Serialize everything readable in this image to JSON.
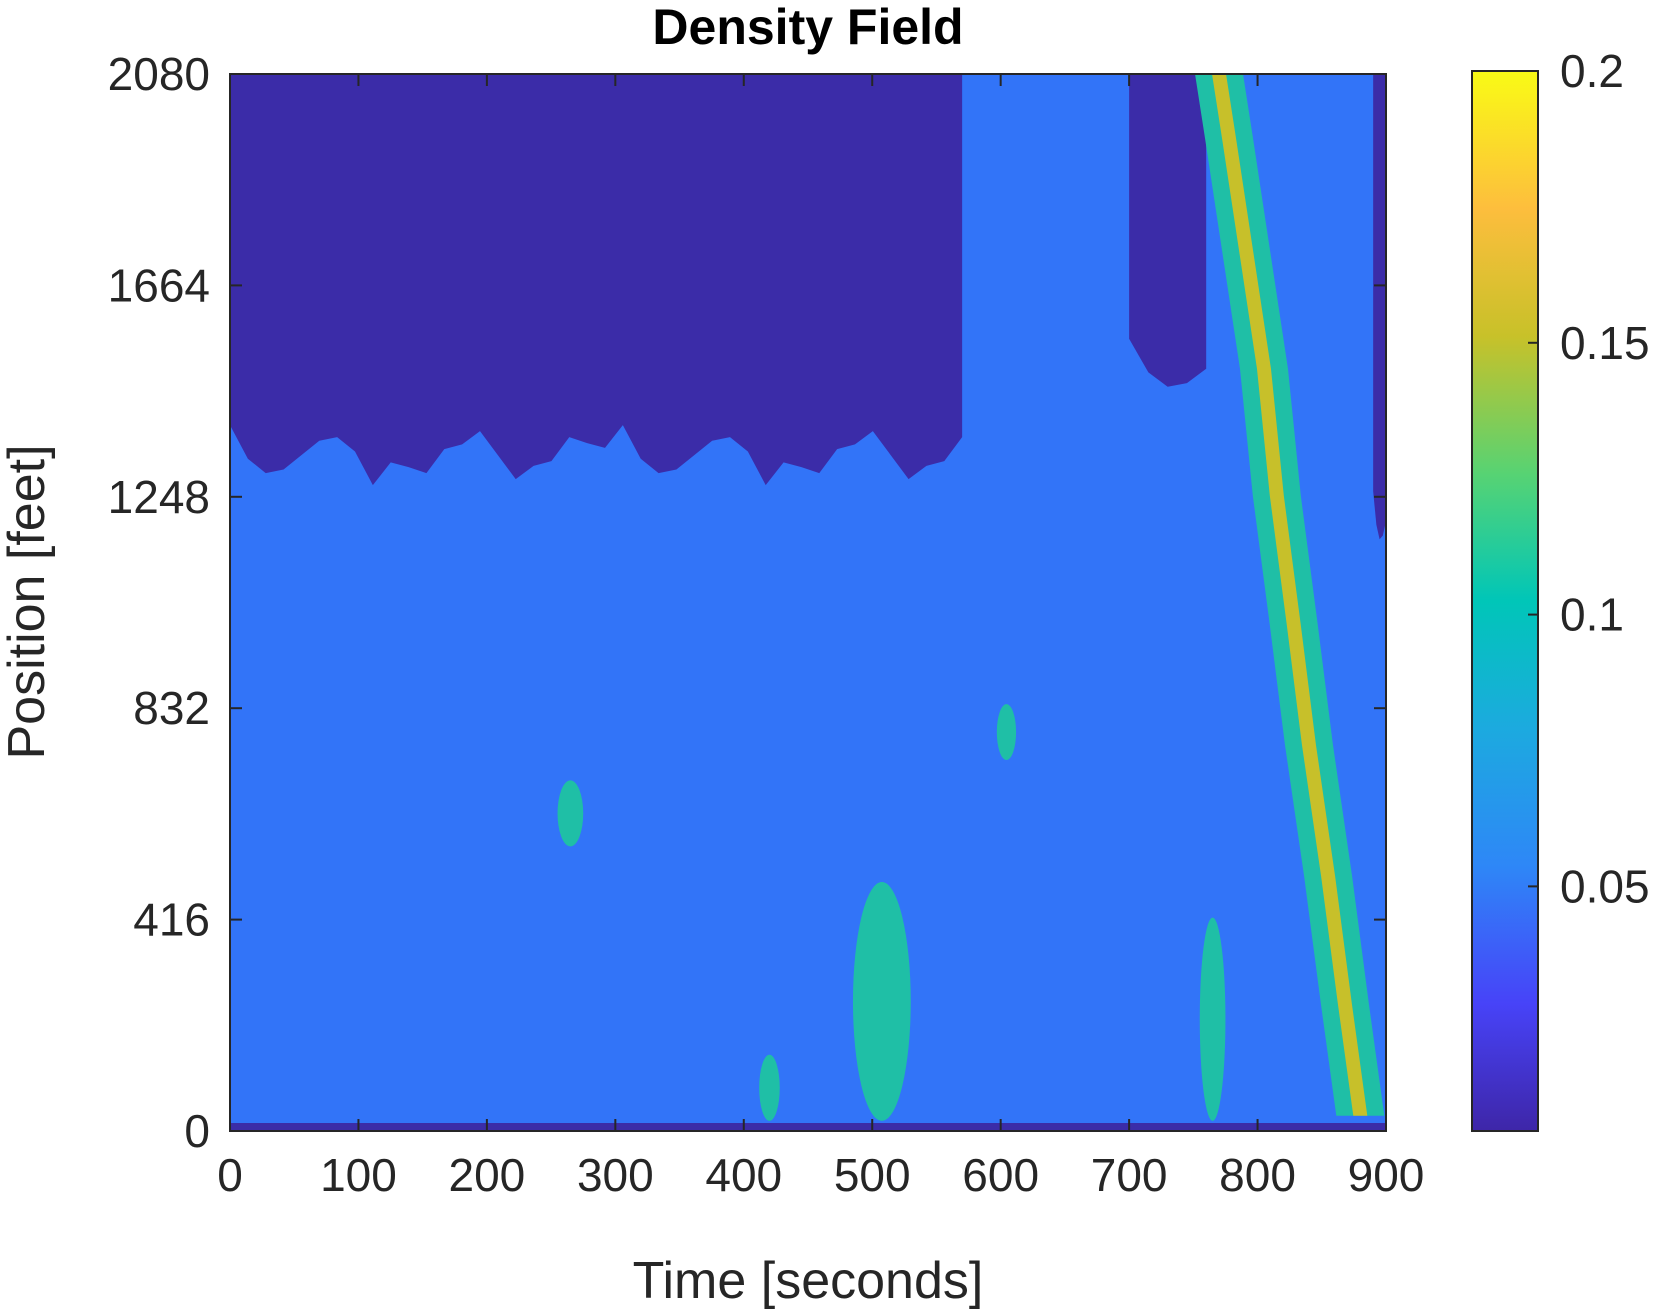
{
  "chart_data": {
    "type": "heatmap",
    "title": "Density Field",
    "xlabel": "Time [seconds]",
    "ylabel": "Position [feet]",
    "xlim": [
      0,
      900
    ],
    "ylim": [
      0,
      2080
    ],
    "xticks": [
      0,
      100,
      200,
      300,
      400,
      500,
      600,
      700,
      800,
      900
    ],
    "yticks": [
      0,
      416,
      832,
      1248,
      1664,
      2080
    ],
    "xtick_labels": [
      "0",
      "100",
      "200",
      "300",
      "400",
      "500",
      "600",
      "700",
      "800",
      "900"
    ],
    "ytick_labels": [
      "0",
      "416",
      "832",
      "1248",
      "1664",
      "2080"
    ],
    "grid": false,
    "colorbar": {
      "range": [
        0.005,
        0.2
      ],
      "ticks": [
        0.05,
        0.1,
        0.15,
        0.2
      ],
      "tick_labels": [
        "0.05",
        "0.1",
        "0.15",
        "0.2"
      ],
      "colormap": [
        "#3e26a8",
        "#4743f8",
        "#2e87f7",
        "#1caadf",
        "#00c6b8",
        "#57d373",
        "#c8c129",
        "#fdbe3d",
        "#f9fb15"
      ]
    },
    "background_level_color": "#3274f8",
    "low_density_color": "#3b2ca8",
    "mid_density_color": "#1fbfa6",
    "high_density_color": "#c7c02a",
    "regions": {
      "low_density_upper_left": {
        "time": [
          0,
          570
        ],
        "position": [
          1330,
          2080
        ],
        "level": 0.02
      },
      "low_density_upper_right": {
        "time": [
          700,
          760
        ],
        "position": [
          1500,
          2080
        ],
        "level": 0.02
      },
      "low_density_right_edge": {
        "time": [
          890,
          900
        ],
        "position": [
          1200,
          2080
        ],
        "level": 0.02
      },
      "congestion_wave": {
        "level": 0.12,
        "path": [
          {
            "time": 770,
            "position": 2080
          },
          {
            "time": 778,
            "position": 1950
          },
          {
            "time": 790,
            "position": 1750
          },
          {
            "time": 805,
            "position": 1500
          },
          {
            "time": 815,
            "position": 1250
          },
          {
            "time": 828,
            "position": 1000
          },
          {
            "time": 840,
            "position": 760
          },
          {
            "time": 855,
            "position": 500
          },
          {
            "time": 868,
            "position": 250
          },
          {
            "time": 880,
            "position": 30
          }
        ]
      },
      "mid_density_streaks": [
        {
          "time": [
            255,
            275
          ],
          "position": [
            560,
            690
          ],
          "level": 0.09
        },
        {
          "time": [
            412,
            428
          ],
          "position": [
            20,
            150
          ],
          "level": 0.09
        },
        {
          "time": [
            485,
            530
          ],
          "position": [
            20,
            490
          ],
          "level": 0.09
        },
        {
          "time": [
            597,
            612
          ],
          "position": [
            730,
            840
          ],
          "level": 0.09
        },
        {
          "time": [
            755,
            775
          ],
          "position": [
            20,
            420
          ],
          "level": 0.09
        }
      ]
    }
  }
}
